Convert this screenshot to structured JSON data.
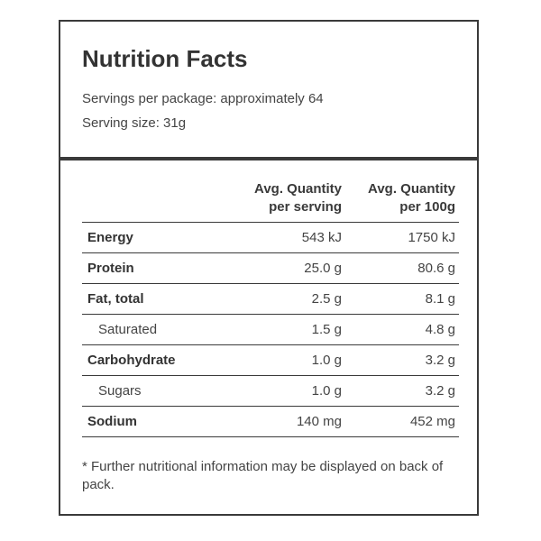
{
  "panel": {
    "title": "Nutrition Facts",
    "servings_per_package": "Servings per package: approximately 64",
    "serving_size": "Serving size: 31g"
  },
  "table": {
    "headers": {
      "per_serving": "Avg. Quantity per serving",
      "per_100g": "Avg. Quantity per 100g"
    },
    "rows": [
      {
        "name": "Energy",
        "per_serving": "543 kJ",
        "per_100g": "1750 kJ",
        "bold": true,
        "indent": false
      },
      {
        "name": "Protein",
        "per_serving": "25.0 g",
        "per_100g": "80.6 g",
        "bold": true,
        "indent": false
      },
      {
        "name": "Fat, total",
        "per_serving": "2.5 g",
        "per_100g": "8.1 g",
        "bold": true,
        "indent": false
      },
      {
        "name": "Saturated",
        "per_serving": "1.5 g",
        "per_100g": "4.8 g",
        "bold": false,
        "indent": true
      },
      {
        "name": "Carbohydrate",
        "per_serving": "1.0 g",
        "per_100g": "3.2 g",
        "bold": true,
        "indent": false
      },
      {
        "name": "Sugars",
        "per_serving": "1.0 g",
        "per_100g": "3.2 g",
        "bold": false,
        "indent": true
      },
      {
        "name": "Sodium",
        "per_serving": "140 mg",
        "per_100g": "452 mg",
        "bold": true,
        "indent": false
      }
    ]
  },
  "footnote": "* Further nutritional information may be displayed on back of pack.",
  "colors": {
    "border": "#3a3a3a",
    "text": "#444444"
  }
}
